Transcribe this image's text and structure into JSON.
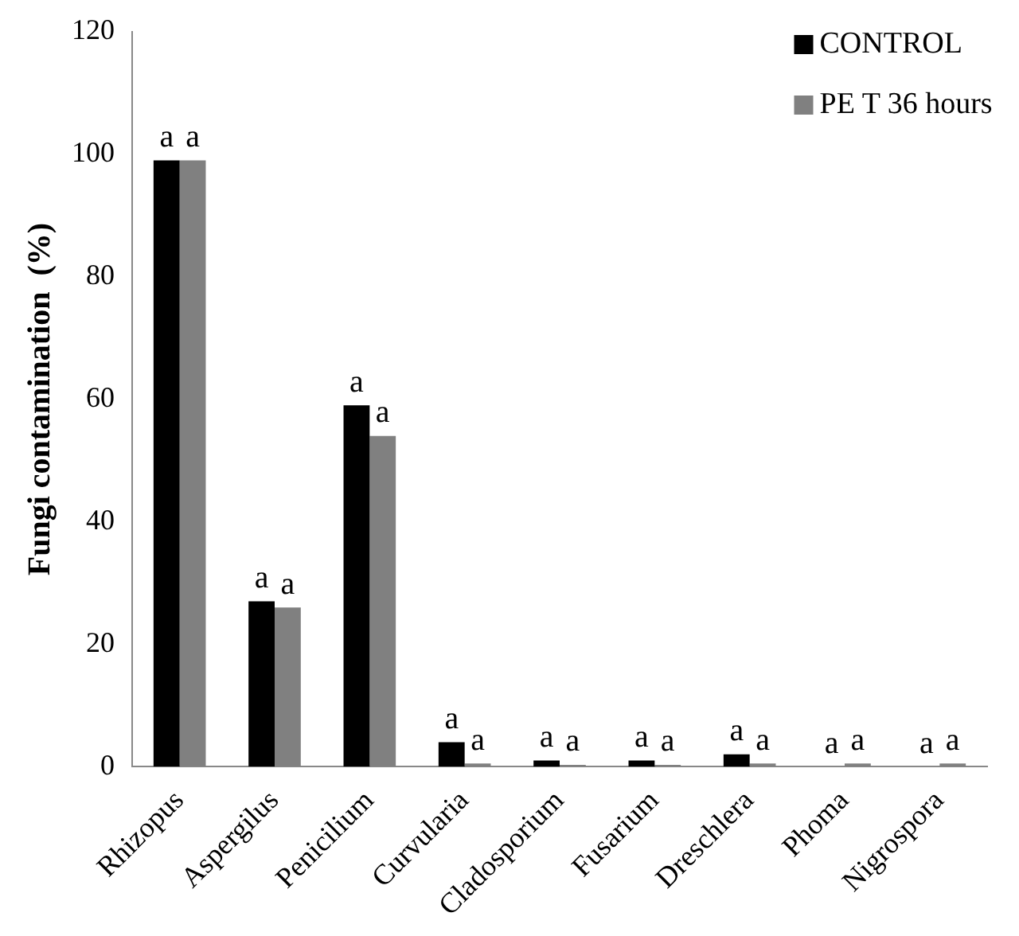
{
  "chart_data": {
    "type": "bar",
    "ylabel": "Fungi contamination  (%)",
    "categories": [
      "Rhizopus",
      "Aspergilus",
      "Penicilium",
      "Curvularia",
      "Cladosporium",
      "Fusarium",
      "Dreschlera",
      "Phoma",
      "Nigrospora"
    ],
    "series": [
      {
        "name": "CONTROL",
        "color": "#000000",
        "values": [
          99,
          27,
          59,
          4,
          1,
          1,
          2,
          0,
          0
        ],
        "value_labels": [
          "a",
          "a",
          "a",
          "a",
          "a",
          "a",
          "a",
          "a",
          "a"
        ]
      },
      {
        "name": "PE T 36 hours",
        "color": "#808080",
        "values": [
          99,
          26,
          54,
          0.5,
          0.3,
          0.3,
          0.5,
          0.5,
          0.5
        ],
        "value_labels": [
          "a",
          "a",
          "a",
          "a",
          "a",
          "a",
          "a",
          "a",
          "a"
        ]
      }
    ],
    "ylim": [
      0,
      120
    ],
    "yticks": [
      0,
      20,
      40,
      60,
      80,
      100,
      120
    ],
    "grid": false,
    "legend": "top right"
  }
}
